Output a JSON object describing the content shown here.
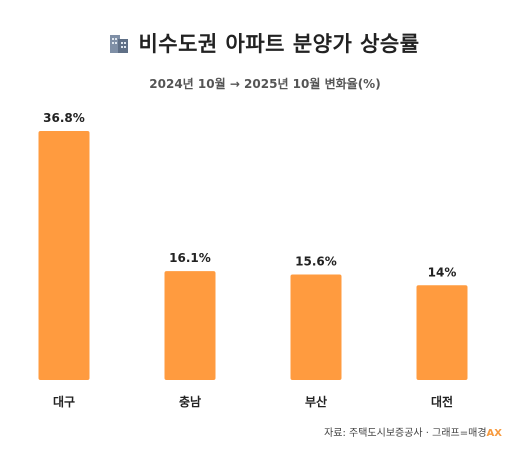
{
  "title": "비수도권 아파트 분양가 상승률",
  "title_icon": "building-icon",
  "subtitle": "2024년 10월 → 2025년 10월 변화율(%)",
  "source_text": "자료: 주택도시보증공사 · 그래프=매경",
  "source_brand": "AX",
  "colors": {
    "bar": "#FF9B3F",
    "brand": "#F79A3E"
  },
  "chart_data": {
    "type": "bar",
    "title": "비수도권 아파트 분양가 상승률",
    "subtitle": "2024년 10월 → 2025년 10월 변화율(%)",
    "categories": [
      "대구",
      "충남",
      "부산",
      "대전"
    ],
    "values": [
      36.8,
      16.1,
      15.6,
      14
    ],
    "value_labels": [
      "36.8%",
      "16.1%",
      "15.6%",
      "14%"
    ],
    "xlabel": "",
    "ylabel": "",
    "ylim": [
      0,
      36.8
    ],
    "grid": false,
    "legend": "none"
  }
}
